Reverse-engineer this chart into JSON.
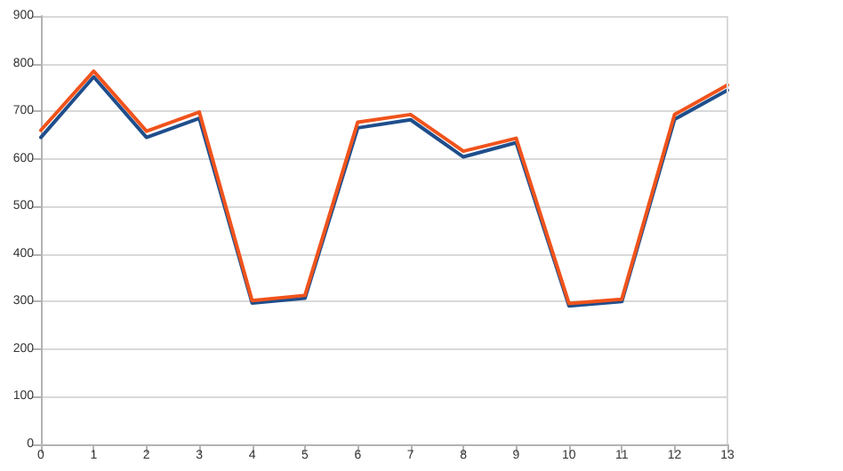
{
  "chart_data": {
    "type": "line",
    "x": [
      0,
      1,
      2,
      3,
      4,
      5,
      6,
      7,
      8,
      9,
      10,
      11,
      12,
      13
    ],
    "series": [
      {
        "color": "#1f4e8c",
        "values": [
          645,
          772,
          645,
          685,
          297,
          307,
          665,
          682,
          604,
          634,
          291,
          300,
          683,
          744
        ]
      },
      {
        "color": "#f0531c",
        "values": [
          660,
          784,
          658,
          698,
          302,
          313,
          677,
          693,
          616,
          643,
          296,
          305,
          693,
          755
        ]
      }
    ],
    "xlim": [
      0,
      13
    ],
    "xticks": [
      0,
      1,
      2,
      3,
      4,
      5,
      6,
      7,
      8,
      9,
      10,
      11,
      12,
      13
    ],
    "ylim": [
      0,
      900
    ],
    "yticks": [
      0,
      100,
      200,
      300,
      400,
      500,
      600,
      700,
      800,
      900
    ],
    "grid": "y",
    "marker": "none",
    "line_style": "solid"
  }
}
